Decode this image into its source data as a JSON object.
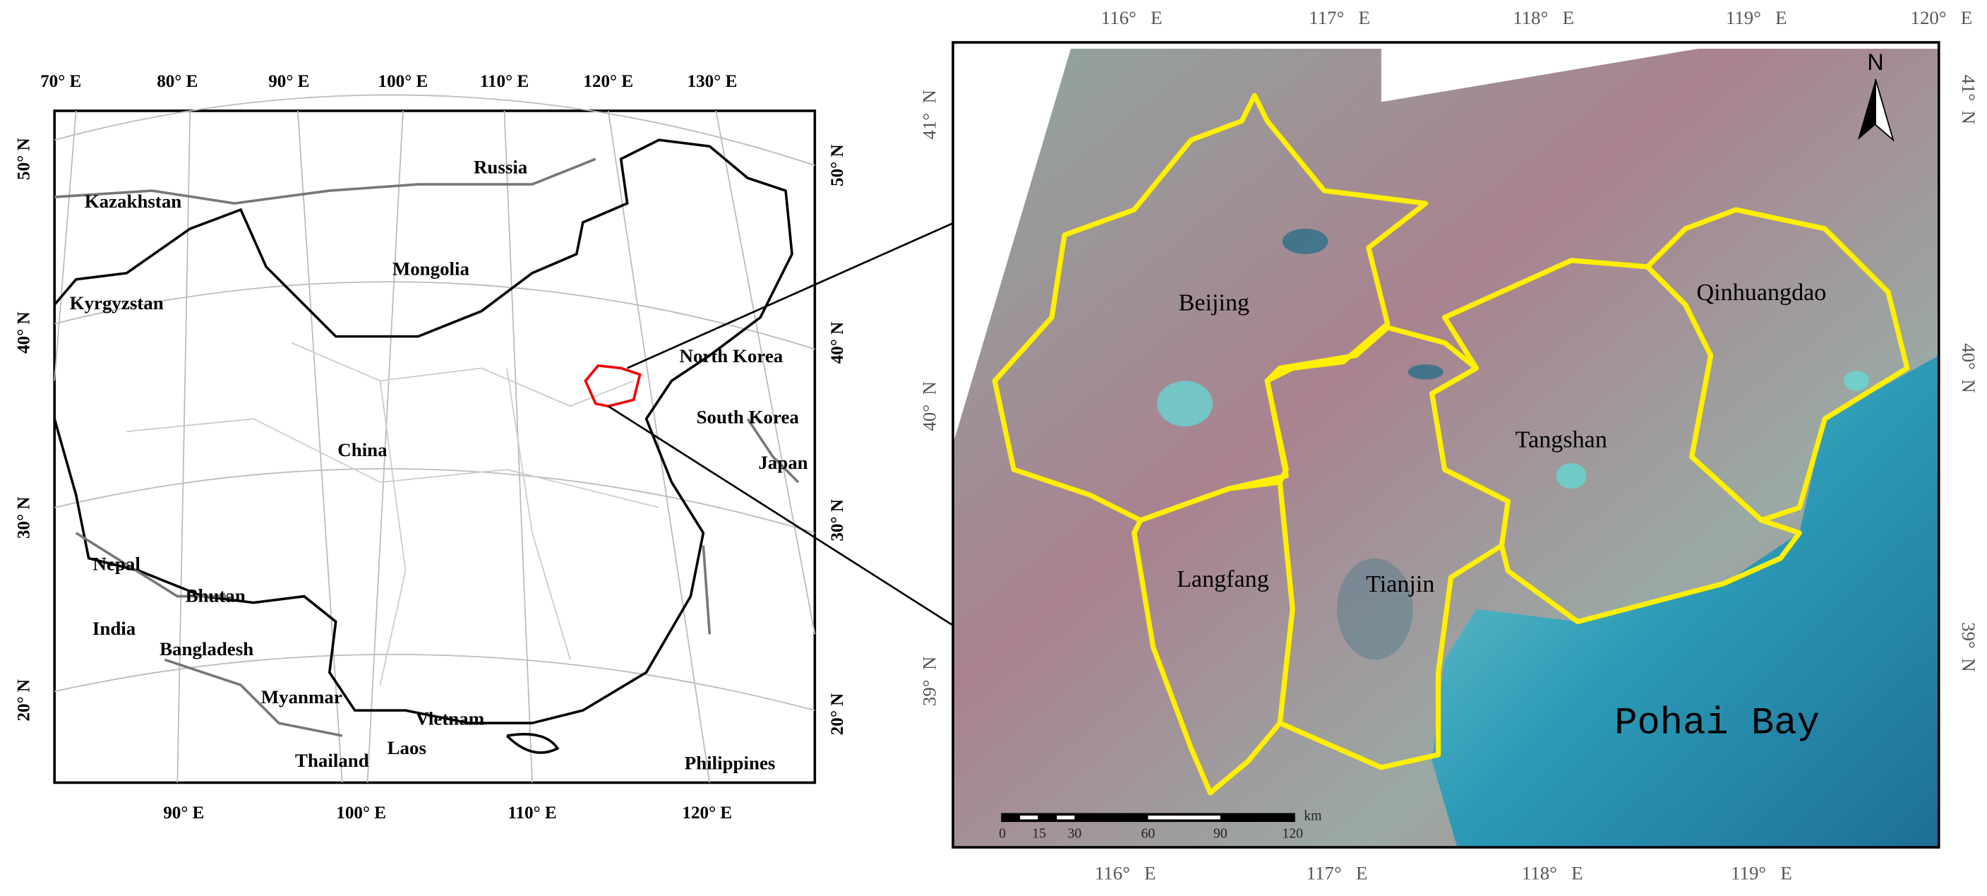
{
  "left_map": {
    "top_labels": [
      "70° E",
      "80° E",
      "90° E",
      "100° E",
      "110° E",
      "120° E",
      "130° E"
    ],
    "bottom_labels": [
      "90° E",
      "100° E",
      "110° E",
      "120° E"
    ],
    "left_labels": [
      "50° N",
      "40° N",
      "30° N",
      "20° N"
    ],
    "right_labels": [
      "50° N",
      "40° N",
      "30° N",
      "20° N"
    ],
    "countries": [
      "Russia",
      "Kazakhstan",
      "Mongolia",
      "Kyrgyzstan",
      "North Korea",
      "South Korea",
      "China",
      "Japan",
      "Nepal",
      "Bhutan",
      "India",
      "Bangladesh",
      "Myanmar",
      "Vietnam",
      "Laos",
      "Thailand",
      "Philippines"
    ]
  },
  "right_map": {
    "top_labels": [
      "116°   E",
      "117°   E",
      "118°   E",
      "119°   E",
      "120°   E"
    ],
    "bottom_labels": [
      "116°   E",
      "117°   E",
      "118°   E",
      "119°   E"
    ],
    "left_labels": [
      "41°  N",
      "40°  N",
      "39°  N"
    ],
    "right_labels": [
      "41°  N",
      "40°  N",
      "39°  N"
    ],
    "cities": [
      "Beijing",
      "Qinhuangdao",
      "Tangshan",
      "Langfang",
      "Tianjin"
    ],
    "bay": "Pohai Bay",
    "north": "N",
    "scale_labels": [
      "0",
      "15",
      "30",
      "60",
      "90",
      "120"
    ],
    "scale_unit": "km"
  }
}
